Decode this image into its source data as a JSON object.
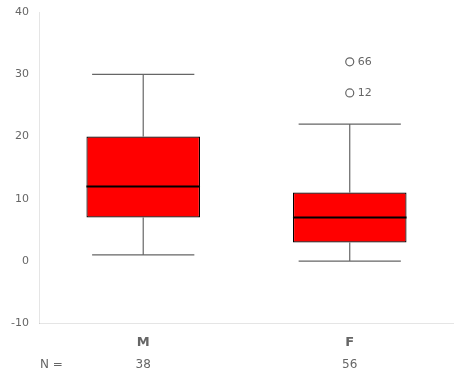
{
  "chart_data": {
    "type": "box",
    "categories": [
      "M",
      "F"
    ],
    "color": "#FF0000",
    "boxes": [
      {
        "q1": 7,
        "median": 12,
        "q3": 20,
        "whisker_low": 1,
        "whisker_high": 30
      },
      {
        "q1": 3,
        "median": 7,
        "q3": 11,
        "whisker_low": 0,
        "whisker_high": 22
      }
    ],
    "outliers": [
      [],
      [
        {
          "value": 32,
          "label": "66"
        },
        {
          "value": 27,
          "label": "12"
        }
      ]
    ],
    "n_label": "N =",
    "n_labels": [
      "38",
      "56"
    ],
    "ylim": [
      -10,
      40
    ],
    "yticks": [
      -10,
      0,
      10,
      20,
      30,
      40
    ],
    "grid": false
  }
}
